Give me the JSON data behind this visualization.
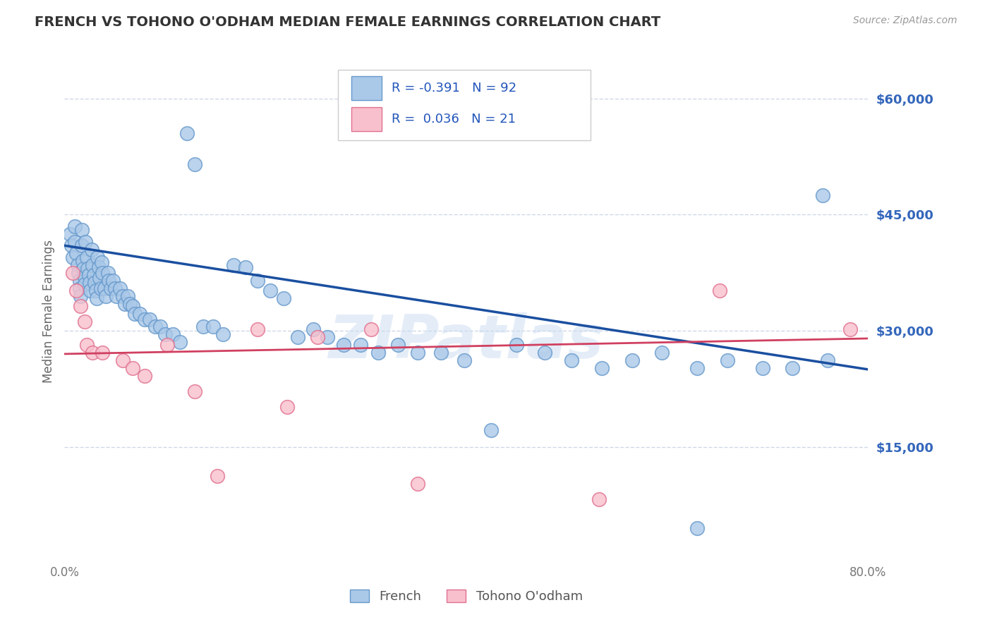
{
  "title": "FRENCH VS TOHONO O'ODHAM MEDIAN FEMALE EARNINGS CORRELATION CHART",
  "source": "Source: ZipAtlas.com",
  "ylabel": "Median Female Earnings",
  "xlim": [
    0.0,
    0.8
  ],
  "ylim": [
    0,
    65000
  ],
  "yticks": [
    15000,
    30000,
    45000,
    60000
  ],
  "ytick_labels": [
    "$15,000",
    "$30,000",
    "$45,000",
    "$60,000"
  ],
  "xticks": [
    0.0,
    0.8
  ],
  "xtick_labels": [
    "0.0%",
    "80.0%"
  ],
  "french_color": "#aac8e8",
  "french_edge_color": "#6699cc",
  "tohono_color": "#f8c0cc",
  "tohono_edge_color": "#e07090",
  "french_line_color": "#1a4fa0",
  "tohono_line_color": "#d04060",
  "french_r": -0.391,
  "french_n": 92,
  "tohono_r": 0.036,
  "tohono_n": 21,
  "legend_r_color": "#2255bb",
  "legend_text_color": "#333333",
  "background_color": "#ffffff",
  "grid_color": "#d0d8e8",
  "title_color": "#333333",
  "source_color": "#999999",
  "yaxis_label_color": "#3366bb",
  "ylabel_color": "#666666",
  "watermark_color": "#c5d8ef",
  "french_scatter_x": [
    0.005,
    0.007,
    0.008,
    0.01,
    0.01,
    0.012,
    0.013,
    0.014,
    0.015,
    0.015,
    0.016,
    0.017,
    0.017,
    0.018,
    0.019,
    0.02,
    0.02,
    0.021,
    0.022,
    0.023,
    0.024,
    0.025,
    0.026,
    0.027,
    0.028,
    0.029,
    0.03,
    0.031,
    0.032,
    0.033,
    0.034,
    0.035,
    0.036,
    0.037,
    0.038,
    0.04,
    0.041,
    0.043,
    0.044,
    0.046,
    0.048,
    0.05,
    0.052,
    0.055,
    0.058,
    0.06,
    0.063,
    0.065,
    0.068,
    0.07,
    0.075,
    0.08,
    0.085,
    0.09,
    0.095,
    0.1,
    0.108,
    0.115,
    0.122,
    0.13,
    0.138,
    0.148,
    0.158,
    0.168,
    0.18,
    0.192,
    0.205,
    0.218,
    0.232,
    0.248,
    0.262,
    0.278,
    0.295,
    0.312,
    0.332,
    0.352,
    0.375,
    0.398,
    0.425,
    0.45,
    0.478,
    0.505,
    0.535,
    0.565,
    0.595,
    0.63,
    0.66,
    0.695,
    0.725,
    0.76,
    0.63,
    0.755
  ],
  "french_scatter_y": [
    42500,
    41000,
    39500,
    43500,
    41500,
    40000,
    38500,
    37500,
    36500,
    35500,
    34500,
    43000,
    41000,
    39000,
    38000,
    37000,
    36000,
    41500,
    39500,
    38000,
    37200,
    36200,
    35200,
    40500,
    38500,
    37200,
    36200,
    35200,
    34200,
    39500,
    38200,
    36800,
    35500,
    38800,
    37500,
    35500,
    34500,
    37500,
    36500,
    35500,
    36500,
    35500,
    34500,
    35500,
    34500,
    33500,
    34500,
    33500,
    33200,
    32200,
    32200,
    31500,
    31500,
    30500,
    30500,
    29500,
    29500,
    28500,
    55500,
    51500,
    30500,
    30500,
    29500,
    38500,
    38200,
    36500,
    35200,
    34200,
    29200,
    30200,
    29200,
    28200,
    28200,
    27200,
    28200,
    27200,
    27200,
    26200,
    17200,
    28200,
    27200,
    26200,
    25200,
    26200,
    27200,
    25200,
    26200,
    25200,
    25200,
    26200,
    4500,
    47500
  ],
  "tohono_scatter_x": [
    0.008,
    0.012,
    0.016,
    0.02,
    0.022,
    0.028,
    0.038,
    0.058,
    0.068,
    0.08,
    0.102,
    0.13,
    0.152,
    0.192,
    0.222,
    0.252,
    0.305,
    0.352,
    0.532,
    0.652,
    0.782
  ],
  "tohono_scatter_y": [
    37500,
    35200,
    33200,
    31200,
    28200,
    27200,
    27200,
    26200,
    25200,
    24200,
    28200,
    22200,
    11200,
    30200,
    20200,
    29200,
    30200,
    10200,
    8200,
    35200,
    30200
  ],
  "french_trendline_x": [
    0.0,
    0.8
  ],
  "french_trendline_y": [
    41000,
    25000
  ],
  "tohono_trendline_x": [
    0.0,
    0.8
  ],
  "tohono_trendline_y": [
    27000,
    29000
  ]
}
